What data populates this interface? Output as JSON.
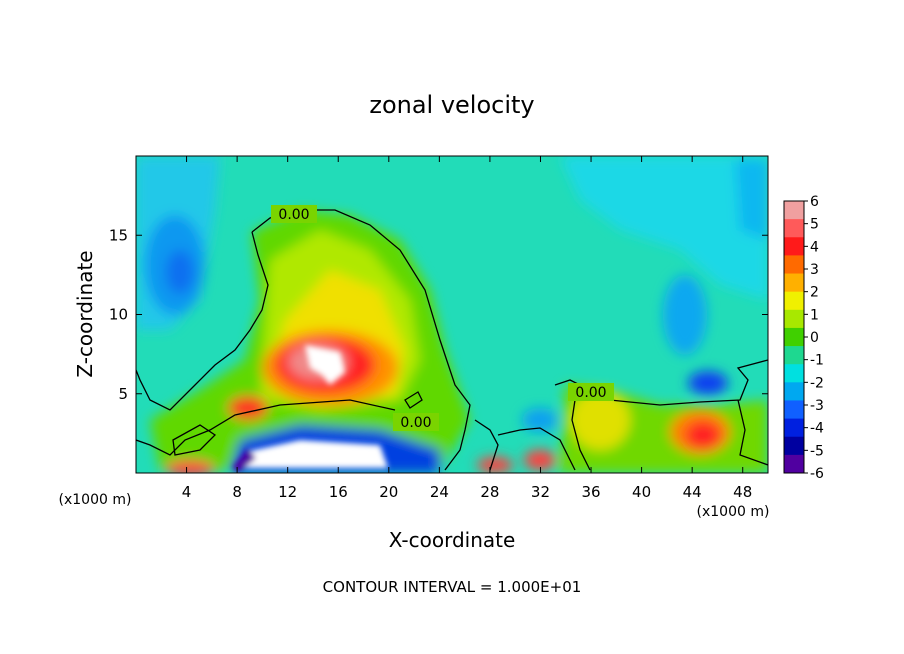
{
  "chart_data": {
    "type": "heatmap",
    "title": "zonal velocity",
    "xlabel": "X-coordinate",
    "ylabel": "Z-coordinate",
    "x_unit_left": "(x1000 m)",
    "x_unit_right": "(x1000 m)",
    "xlim": [
      0,
      50
    ],
    "ylim": [
      0,
      20
    ],
    "x_ticks": [
      4,
      8,
      12,
      16,
      20,
      24,
      28,
      32,
      36,
      40,
      44,
      48
    ],
    "y_ticks": [
      5,
      10,
      15
    ],
    "colorbar": {
      "ticks": [
        6,
        5,
        4,
        3,
        2,
        1,
        0,
        -1,
        -2,
        -3,
        -4,
        -5,
        -6
      ],
      "colors": [
        "#f0a0a0",
        "#ff5a5a",
        "#ff1a1a",
        "#ff6a00",
        "#ffb000",
        "#f0f000",
        "#a8e800",
        "#40d000",
        "#1ed890",
        "#00e0e0",
        "#00a8f0",
        "#1060ff",
        "#0020e0",
        "#0000a0",
        "#5000a0"
      ]
    },
    "contour_labels": [
      "0.00",
      "0.00",
      "0.00"
    ],
    "footer": "CONTOUR INTERVAL = 1.000E+01",
    "features": [
      {
        "x": 14.5,
        "z": 7.5,
        "value": 6.5,
        "note": "max"
      },
      {
        "x": 14.0,
        "z": 1.0,
        "value": -6.5,
        "note": "min"
      },
      {
        "x": 45.0,
        "z": 2.5,
        "value": 4
      },
      {
        "x": 45.0,
        "z": 5.5,
        "value": -4
      },
      {
        "x": 3.5,
        "z": 12.5,
        "value": -3
      }
    ]
  }
}
